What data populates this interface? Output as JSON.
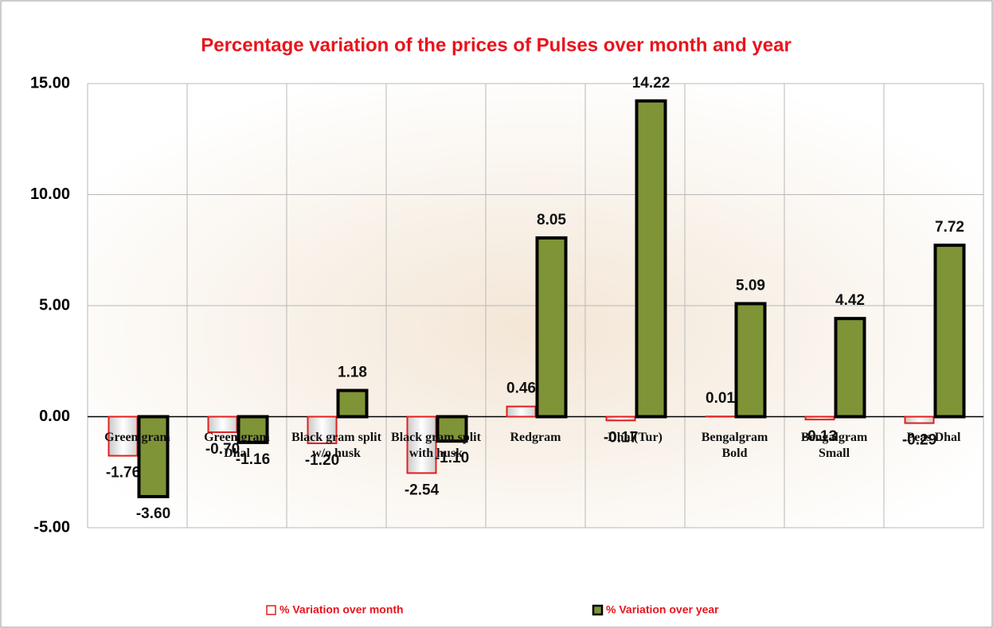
{
  "chart_data": {
    "type": "bar",
    "title": "Percentage variation of the prices of Pulses over month and year",
    "categories": [
      "Green gram",
      "Green gram Dhal",
      "Black gram split w/o husk",
      "Black gram split with husk",
      "Redgram",
      "Dhal(Tur)",
      "Bengalgram Bold",
      "Bengalgram Small",
      "Peas Dhal"
    ],
    "series": [
      {
        "name": "% Variation over month",
        "color": "#ffffff",
        "edge": "#e02020",
        "values": [
          -1.76,
          -0.7,
          -1.2,
          -2.54,
          0.46,
          -0.17,
          0.01,
          -0.13,
          -0.29
        ],
        "value_labels": [
          "-1.76",
          "-0.70",
          "-1.20",
          "-2.54",
          "0.46",
          "-0.17",
          "0.01",
          "-0.13",
          "-0.29"
        ]
      },
      {
        "name": "% Variation over year",
        "color": "#7f9437",
        "edge": "#000000",
        "values": [
          -3.6,
          -1.16,
          1.18,
          -1.1,
          8.05,
          14.22,
          5.09,
          4.42,
          7.72
        ],
        "value_labels": [
          "-3.60",
          "-1.16",
          "1.18",
          "-1.10",
          "8.05",
          "14.22",
          "5.09",
          "4.42",
          "7.72"
        ]
      }
    ],
    "ylim": [
      -5,
      15
    ],
    "yticks": [
      {
        "value": -5,
        "label": "-5.00"
      },
      {
        "value": 0,
        "label": "0.00"
      },
      {
        "value": 5,
        "label": "5.00"
      },
      {
        "value": 10,
        "label": "10.00"
      },
      {
        "value": 15,
        "label": "15.00"
      }
    ],
    "grid": true,
    "legend": "bottom"
  }
}
